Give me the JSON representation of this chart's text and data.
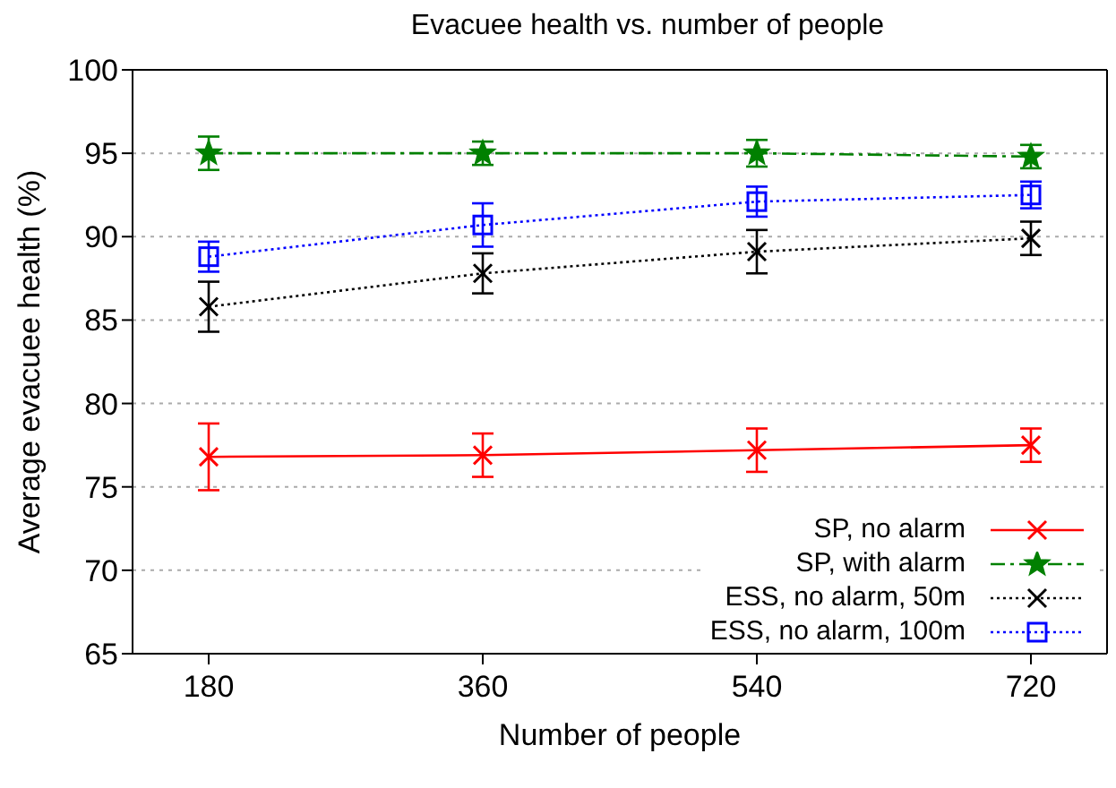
{
  "chart_data": {
    "type": "line",
    "title": "Evacuee health vs. number of people",
    "xlabel": "Number of people",
    "ylabel": "Average evacuee health (%)",
    "x": [
      180,
      360,
      540,
      720
    ],
    "xlim": [
      130,
      770
    ],
    "xticks": [
      180,
      360,
      540,
      720
    ],
    "ylim": [
      65,
      100
    ],
    "yticks": [
      65,
      70,
      75,
      80,
      85,
      90,
      95,
      100
    ],
    "grid": "y",
    "legend": "bottom right",
    "series": [
      {
        "name": "SP, no alarm",
        "color": "#ff0000",
        "marker": "cross",
        "line_style": "solid",
        "values": [
          76.8,
          76.9,
          77.2,
          77.5
        ],
        "errors": [
          2.0,
          1.3,
          1.3,
          1.0
        ]
      },
      {
        "name": "SP, with alarm",
        "color": "#008000",
        "marker": "star",
        "line_style": "dashed",
        "values": [
          95.0,
          95.0,
          95.0,
          94.8
        ],
        "errors": [
          1.0,
          0.7,
          0.8,
          0.7
        ]
      },
      {
        "name": "ESS, no alarm, 50m",
        "color": "#000000",
        "marker": "cross",
        "line_style": "dotted",
        "values": [
          85.8,
          87.8,
          89.1,
          89.9
        ],
        "errors": [
          1.5,
          1.2,
          1.3,
          1.0
        ]
      },
      {
        "name": "ESS, no alarm, 100m",
        "color": "#0000ff",
        "marker": "square",
        "line_style": "dotted",
        "values": [
          88.8,
          90.7,
          92.1,
          92.5
        ],
        "errors": [
          0.9,
          1.3,
          0.9,
          0.8
        ]
      }
    ]
  }
}
